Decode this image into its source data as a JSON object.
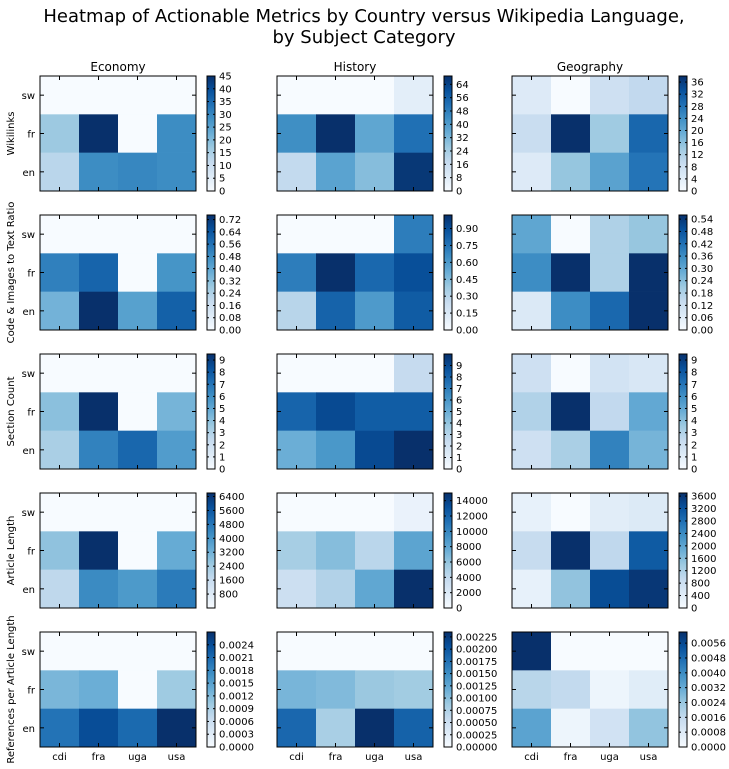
{
  "title_line1": "Heatmap of Actionable Metrics by Country versus Wikipedia Language,",
  "title_line2": "by Subject Category",
  "chart_data": {
    "type": "heatmap",
    "columns": [
      "Economy",
      "History",
      "Geography"
    ],
    "rows": [
      "Wikilinks",
      "Code & Images to Text Ratio",
      "Section Count",
      "Article Length",
      "References per Article Length"
    ],
    "x_categories": [
      "cdi",
      "fra",
      "uga",
      "usa"
    ],
    "y_categories": [
      "en",
      "fr",
      "sw"
    ],
    "colormap": "Blues",
    "colormap_low": "#f7fbff",
    "colormap_high": "#08306b",
    "panels": [
      [
        {
          "vmin": 0,
          "vmax": 45,
          "ticks": [
            "0",
            "5",
            "10",
            "15",
            "20",
            "25",
            "30",
            "35",
            "40",
            "45"
          ],
          "values": {
            "sw": [
              0,
              0,
              0,
              0
            ],
            "fr": [
              17,
              45,
              0,
              29
            ],
            "en": [
              13,
              29,
              30,
              29
            ]
          }
        },
        {
          "vmin": 0,
          "vmax": 69,
          "ticks": [
            "0",
            "8",
            "16",
            "24",
            "32",
            "40",
            "48",
            "56",
            "64"
          ],
          "values": {
            "sw": [
              0,
              0,
              0,
              7
            ],
            "fr": [
              44,
              69,
              37,
              52
            ],
            "en": [
              18,
              38,
              30,
              67
            ]
          }
        },
        {
          "vmin": 0,
          "vmax": 38,
          "ticks": [
            "0",
            "4",
            "8",
            "12",
            "16",
            "20",
            "24",
            "28",
            "32",
            "36"
          ],
          "values": {
            "sw": [
              5,
              0,
              8,
              10
            ],
            "fr": [
              9,
              38,
              14,
              30
            ],
            "en": [
              5,
              15,
              21,
              28
            ]
          }
        }
      ],
      [
        {
          "vmin": 0,
          "vmax": 0.75,
          "ticks": [
            "0.00",
            "0.08",
            "0.16",
            "0.24",
            "0.32",
            "0.40",
            "0.48",
            "0.56",
            "0.64",
            "0.72"
          ],
          "values": {
            "sw": [
              0,
              0,
              0,
              0
            ],
            "fr": [
              0.52,
              0.6,
              0,
              0.46
            ],
            "en": [
              0.36,
              0.75,
              0.42,
              0.61
            ]
          }
        },
        {
          "vmin": 0,
          "vmax": 1.02,
          "ticks": [
            "0.00",
            "0.15",
            "0.30",
            "0.45",
            "0.60",
            "0.75",
            "0.90"
          ],
          "values": {
            "sw": [
              0,
              0,
              0,
              0.72
            ],
            "fr": [
              0.72,
              1.02,
              0.8,
              0.9
            ],
            "en": [
              0.3,
              0.82,
              0.6,
              0.85
            ]
          }
        },
        {
          "vmin": 0,
          "vmax": 0.56,
          "ticks": [
            "0.00",
            "0.06",
            "0.12",
            "0.18",
            "0.24",
            "0.30",
            "0.36",
            "0.42",
            "0.48",
            "0.54"
          ],
          "values": {
            "sw": [
              0.3,
              0,
              0.18,
              0.22
            ],
            "fr": [
              0.36,
              0.56,
              0.18,
              0.56
            ],
            "en": [
              0.08,
              0.36,
              0.44,
              0.56
            ]
          }
        }
      ],
      [
        {
          "vmin": 0,
          "vmax": 9.5,
          "ticks": [
            "0",
            "1",
            "2",
            "3",
            "4",
            "5",
            "6",
            "7",
            "8",
            "9"
          ],
          "values": {
            "sw": [
              0,
              0,
              0,
              0
            ],
            "fr": [
              4,
              9.5,
              0,
              4.5
            ],
            "en": [
              3.2,
              6.5,
              7.5,
              5.5
            ]
          }
        },
        {
          "vmin": 0,
          "vmax": 10,
          "ticks": [
            "0",
            "1",
            "2",
            "3",
            "4",
            "5",
            "6",
            "7",
            "8",
            "9"
          ],
          "values": {
            "sw": [
              0,
              0,
              0,
              2.5
            ],
            "fr": [
              8,
              9,
              8.3,
              8.3
            ],
            "en": [
              5,
              6,
              9,
              10
            ]
          }
        },
        {
          "vmin": 0,
          "vmax": 9.5,
          "ticks": [
            "0",
            "1",
            "2",
            "3",
            "4",
            "5",
            "6",
            "7",
            "8",
            "9"
          ],
          "values": {
            "sw": [
              2,
              0,
              1.8,
              1.5
            ],
            "fr": [
              3,
              9.5,
              2.5,
              5
            ],
            "en": [
              2,
              3.2,
              6.5,
              4.5
            ]
          }
        }
      ],
      [
        {
          "vmin": 0,
          "vmax": 6600,
          "ticks": [
            "800",
            "1600",
            "2400",
            "3200",
            "4000",
            "4800",
            "5600",
            "6400"
          ],
          "values": {
            "sw": [
              0,
              0,
              0,
              0
            ],
            "fr": [
              2700,
              6600,
              0,
              3400
            ],
            "en": [
              1800,
              4300,
              3900,
              4700
            ]
          }
        },
        {
          "vmin": 0,
          "vmax": 15000,
          "ticks": [
            "0",
            "2000",
            "4000",
            "6000",
            "8000",
            "10000",
            "12000",
            "14000"
          ],
          "values": {
            "sw": [
              0,
              0,
              0,
              1000
            ],
            "fr": [
              5200,
              6500,
              4300,
              8200
            ],
            "en": [
              3300,
              4700,
              8000,
              15000
            ]
          }
        },
        {
          "vmin": 0,
          "vmax": 3700,
          "ticks": [
            "0",
            "400",
            "800",
            "1200",
            "1600",
            "2000",
            "2400",
            "2800",
            "3200",
            "3600"
          ],
          "values": {
            "sw": [
              300,
              0,
              400,
              500
            ],
            "fr": [
              900,
              3700,
              1000,
              3100
            ],
            "en": [
              300,
              1500,
              3300,
              3600
            ]
          }
        }
      ],
      [
        {
          "vmin": 0,
          "vmax": 0.0027,
          "ticks": [
            "0.0000",
            "0.0003",
            "0.0006",
            "0.0009",
            "0.0012",
            "0.0015",
            "0.0018",
            "0.0021",
            "0.0024"
          ],
          "values": {
            "sw": [
              0,
              0,
              0,
              0
            ],
            "fr": [
              0.00125,
              0.00135,
              0,
              0.001
            ],
            "en": [
              0.002,
              0.0024,
              0.0021,
              0.0027
            ]
          }
        },
        {
          "vmin": 0,
          "vmax": 0.00235,
          "ticks": [
            "0.00000",
            "0.00025",
            "0.00050",
            "0.00075",
            "0.00100",
            "0.00125",
            "0.00150",
            "0.00175",
            "0.00200",
            "0.00225"
          ],
          "values": {
            "sw": [
              0,
              0,
              0,
              0
            ],
            "fr": [
              0.0011,
              0.00105,
              0.0009,
              0.00085
            ],
            "en": [
              0.00185,
              0.0008,
              0.00235,
              0.0019
            ]
          }
        },
        {
          "vmin": 0,
          "vmax": 0.0062,
          "ticks": [
            "0.0000",
            "0.0008",
            "0.0016",
            "0.0024",
            "0.0032",
            "0.0040",
            "0.0048",
            "0.0056"
          ],
          "values": {
            "sw": [
              0.0062,
              0,
              0,
              0
            ],
            "fr": [
              0.0018,
              0.0016,
              0.0003,
              0.0007
            ],
            "en": [
              0.0034,
              0.0003,
              0.0012,
              0.0025
            ]
          }
        }
      ]
    ]
  }
}
